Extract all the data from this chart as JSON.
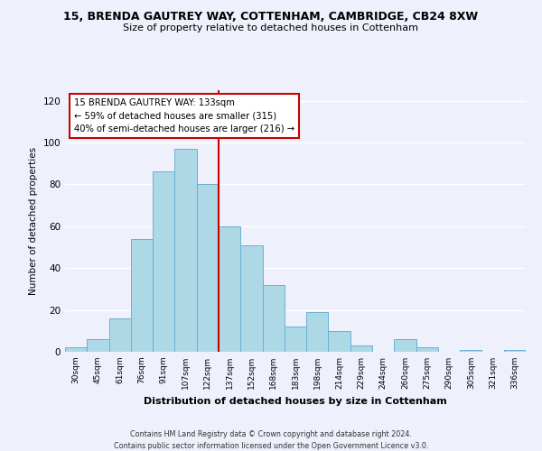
{
  "title1": "15, BRENDA GAUTREY WAY, COTTENHAM, CAMBRIDGE, CB24 8XW",
  "title2": "Size of property relative to detached houses in Cottenham",
  "xlabel": "Distribution of detached houses by size in Cottenham",
  "ylabel": "Number of detached properties",
  "bar_labels": [
    "30sqm",
    "45sqm",
    "61sqm",
    "76sqm",
    "91sqm",
    "107sqm",
    "122sqm",
    "137sqm",
    "152sqm",
    "168sqm",
    "183sqm",
    "198sqm",
    "214sqm",
    "229sqm",
    "244sqm",
    "260sqm",
    "275sqm",
    "290sqm",
    "305sqm",
    "321sqm",
    "336sqm"
  ],
  "bar_values": [
    2,
    6,
    16,
    54,
    86,
    97,
    80,
    60,
    51,
    32,
    12,
    19,
    10,
    3,
    0,
    6,
    2,
    0,
    1,
    0,
    1
  ],
  "bar_color": "#add8e6",
  "bar_edgecolor": "#6ab0d4",
  "vline_x_index": 6.5,
  "vline_color": "#cc0000",
  "annotation_line1": "15 BRENDA GAUTREY WAY: 133sqm",
  "annotation_line2": "← 59% of detached houses are smaller (315)",
  "annotation_line3": "40% of semi-detached houses are larger (216) →",
  "annotation_box_edgecolor": "#cc0000",
  "annotation_box_facecolor": "#ffffff",
  "ylim": [
    0,
    125
  ],
  "yticks": [
    0,
    20,
    40,
    60,
    80,
    100,
    120
  ],
  "footer1": "Contains HM Land Registry data © Crown copyright and database right 2024.",
  "footer2": "Contains public sector information licensed under the Open Government Licence v3.0.",
  "background_color": "#eef1fb",
  "grid_color": "#ffffff"
}
